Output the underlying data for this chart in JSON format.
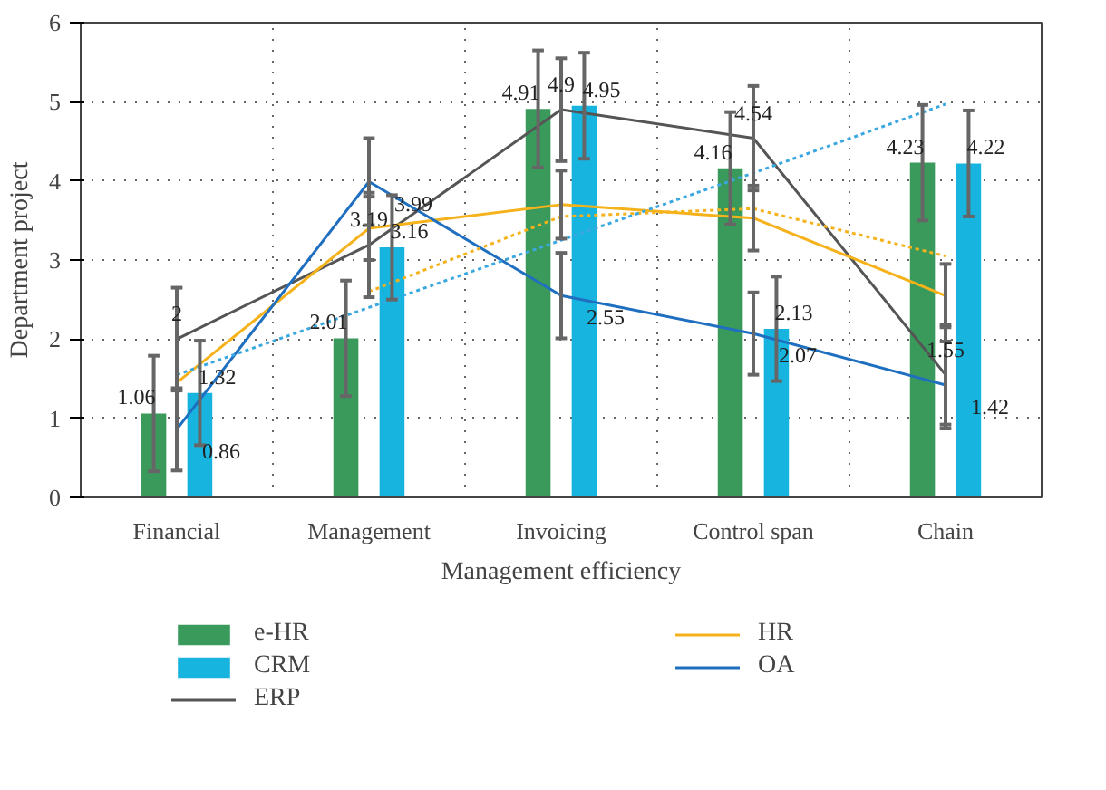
{
  "chart_data": {
    "type": "bar",
    "xlabel": "Management efficiency",
    "ylabel": "Department project",
    "categories": [
      "Financial",
      "Management",
      "Invoicing",
      "Control span",
      "Chain"
    ],
    "ylim": [
      0,
      6
    ],
    "yticks": [
      0,
      1,
      2,
      3,
      4,
      5,
      6
    ],
    "grid": true,
    "legend": "bottom",
    "series": [
      {
        "name": "e-HR",
        "type": "bar",
        "color": "#3a9a5c",
        "values": [
          1.06,
          2.01,
          4.91,
          4.16,
          4.23
        ],
        "errors": [
          0.73,
          0.73,
          0.74,
          0.71,
          0.73
        ],
        "value_labels": [
          "1.06",
          "2.01",
          "4.91",
          "4.16",
          "4.23"
        ]
      },
      {
        "name": "CRM",
        "type": "bar",
        "color": "#17b4e0",
        "values": [
          1.32,
          3.16,
          4.95,
          2.13,
          4.22
        ],
        "errors": [
          0.66,
          0.66,
          0.67,
          0.66,
          0.67
        ],
        "value_labels": [
          "1.32",
          "3.16",
          "4.95",
          "2.13",
          "4.22"
        ]
      },
      {
        "name": "ERP",
        "type": "line",
        "color": "#555555",
        "values": [
          2,
          3.19,
          4.9,
          4.54,
          1.55
        ],
        "errors": [
          0.65,
          0.66,
          0.65,
          0.66,
          0.63
        ],
        "value_labels": [
          "2",
          "3.19",
          "4.9",
          "4.54",
          "1.55"
        ]
      },
      {
        "name": "HR",
        "type": "line",
        "color": "#f5b21a",
        "values": [
          1.45,
          3.4,
          3.7,
          3.53,
          2.55
        ],
        "errors": [
          null,
          0.4,
          0.43,
          0.41,
          0.4
        ]
      },
      {
        "name": "OA",
        "type": "line",
        "color": "#1f6fc0",
        "values": [
          0.86,
          3.99,
          2.55,
          2.07,
          1.42
        ],
        "errors": [
          0.52,
          0.55,
          0.54,
          0.52,
          0.55
        ],
        "value_labels": [
          "0.86",
          "3.99",
          "2.55",
          "2.07",
          "1.42"
        ]
      },
      {
        "type": "line",
        "line_style": "dotted",
        "color": "#f5b21a",
        "values": [
          null,
          2.6,
          3.55,
          3.65,
          3.05
        ]
      },
      {
        "type": "line",
        "line_style": "dotted",
        "color": "#3aa8e0",
        "values": [
          1.55,
          2.4,
          3.25,
          4.1,
          4.97
        ]
      }
    ]
  }
}
